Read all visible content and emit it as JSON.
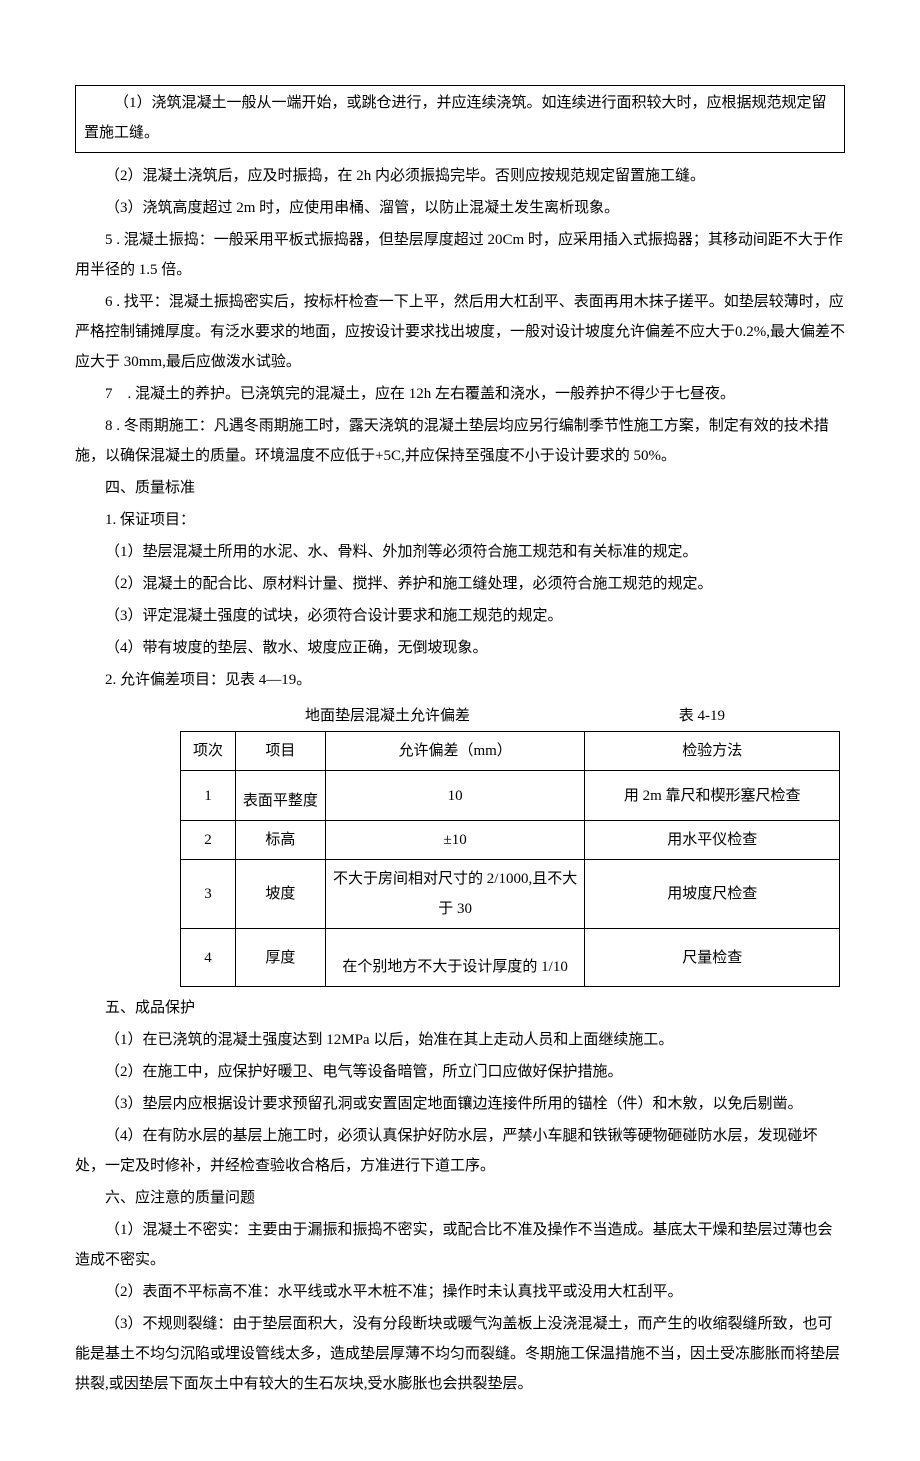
{
  "boxed": {
    "p1": "（1）浇筑混凝土一般从一端开始，或跳仓进行，并应连续浇筑。如连续进行面积较大时，应根据规范规定留置施工缝。"
  },
  "paras": {
    "p2": "（2）混凝土浇筑后，应及时振捣，在 2h 内必须振捣完毕。否则应按规范规定留置施工缝。",
    "p3": "（3）浇筑高度超过 2m 时，应使用串桶、溜管，以防止混凝土发生离析现象。",
    "p5": "5 . 混凝土振捣：一般采用平板式振捣器，但垫层厚度超过 20Cm 时，应采用插入式振捣器；其移动间距不大于作用半径的 1.5 倍。",
    "p6": "6 . 找平：混凝土振捣密实后，按标杆检查一下上平，然后用大杠刮平、表面再用木抹子搓平。如垫层较薄时，应严格控制铺摊厚度。有泛水要求的地面，应按设计要求找出坡度，一般对设计坡度允许偏差不应大于0.2%,最大偏差不应大于 30mm,最后应做泼水试验。",
    "p7": "7　. 混凝土的养护。已浇筑完的混凝土，应在 12h 左右覆盖和浇水，一般养护不得少于七昼夜。",
    "p8": "8 . 冬雨期施工：凡遇冬雨期施工时，露天浇筑的混凝土垫层均应另行编制季节性施工方案，制定有效的技术措施，以确保混凝土的质量。环境温度不应低于+5C,并应保持至强度不小于设计要求的 50%。",
    "s4": "四、质量标准",
    "s4_1": "1. 保证项目：",
    "s4_1_1": "（1）垫层混凝土所用的水泥、水、骨料、外加剂等必须符合施工规范和有关标准的规定。",
    "s4_1_2": "（2）混凝土的配合比、原材料计量、搅拌、养护和施工缝处理，必须符合施工规范的规定。",
    "s4_1_3": "（3）评定混凝土强度的试块，必须符合设计要求和施工规范的规定。",
    "s4_1_4": "（4）带有坡度的垫层、散水、坡度应正确，无倒坡现象。",
    "s4_2": "2. 允许偏差项目：见表 4—19。",
    "s5": "五、成品保护",
    "s5_1": "（1）在已浇筑的混凝土强度达到 12MPa 以后，始准在其上走动人员和上面继续施工。",
    "s5_2": "（2）在施工中，应保护好暖卫、电气等设备暗管，所立门口应做好保护措施。",
    "s5_3": "（3）垫层内应根据设计要求预留孔洞或安置固定地面镶边连接件所用的锚栓（件）和木敫，以免后剔凿。",
    "s5_4": "（4）在有防水层的基层上施工时，必须认真保护好防水层，严禁小车腿和铁锹等硬物砸碰防水层，发现碰坏处，一定及时修补，并经检查验收合格后，方准进行下道工序。",
    "s6": "六、应注意的质量问题",
    "s6_1": "（1）混凝土不密实：主要由于漏振和振捣不密实，或配合比不准及操作不当造成。基底太干燥和垫层过薄也会造成不密实。",
    "s6_2": "（2）表面不平标高不准：水平线或水平木桩不准；操作时未认真找平或没用大杠刮平。",
    "s6_3": "（3）不规则裂缝：由于垫层面积大，没有分段断块或暖气沟盖板上没浇混凝土，而产生的收缩裂缝所致，也可能是基土不均匀沉陷或埋设管线太多，造成垫层厚薄不均匀而裂缝。冬期施工保温措施不当，因土受冻膨胀而将垫层拱裂,或因垫层下面灰土中有较大的生石灰块,受水膨胀也会拱裂垫层。"
  },
  "table": {
    "caption_left": "地面垫层混凝土允许偏差",
    "caption_right": "表 4-19",
    "headers": {
      "c1": "项次",
      "c2": "项目",
      "c3": "允许偏差（mm）",
      "c4": "检验方法"
    },
    "rows": [
      {
        "c1": "1",
        "c2": "表面平整度",
        "c3": "10",
        "c4": "用 2m 靠尺和楔形塞尺检查"
      },
      {
        "c1": "2",
        "c2": "标高",
        "c3": "±10",
        "c4": "用水平仪检查"
      },
      {
        "c1": "3",
        "c2": "坡度",
        "c3": "不大于房间相对尺寸的 2/1000,且不大于 30",
        "c4": "用坡度尺检查"
      },
      {
        "c1": "4",
        "c2": "厚度",
        "c3": "在个别地方不大于设计厚度的 1/10",
        "c4": "尺量检查"
      }
    ]
  }
}
